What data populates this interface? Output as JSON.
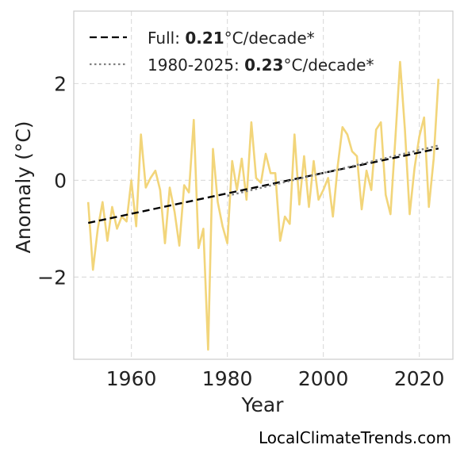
{
  "chart_data": {
    "type": "line",
    "xlabel": "Year",
    "ylabel": "Anomaly (°C)",
    "xlim": [
      1948,
      2027
    ],
    "ylim": [
      -3.7,
      3.5
    ],
    "xticks": [
      1960,
      1980,
      2000,
      2020
    ],
    "yticks": [
      {
        "value": -2,
        "label": "−2"
      },
      {
        "value": 0,
        "label": "0"
      },
      {
        "value": 2,
        "label": "2"
      }
    ],
    "grid": true,
    "legend_position": "top-left",
    "series": [
      {
        "role": "annual-anomaly",
        "color": "#f2d57a",
        "x": [
          1951,
          1952,
          1953,
          1954,
          1955,
          1956,
          1957,
          1958,
          1959,
          1960,
          1961,
          1962,
          1963,
          1964,
          1965,
          1966,
          1967,
          1968,
          1969,
          1970,
          1971,
          1972,
          1973,
          1974,
          1975,
          1976,
          1977,
          1978,
          1979,
          1980,
          1981,
          1982,
          1983,
          1984,
          1985,
          1986,
          1987,
          1988,
          1989,
          1990,
          1991,
          1992,
          1993,
          1994,
          1995,
          1996,
          1997,
          1998,
          1999,
          2000,
          2001,
          2002,
          2003,
          2004,
          2005,
          2006,
          2007,
          2008,
          2009,
          2010,
          2011,
          2012,
          2013,
          2014,
          2015,
          2016,
          2017,
          2018,
          2019,
          2020,
          2021,
          2022,
          2023,
          2024
        ],
        "y": [
          -0.45,
          -1.85,
          -1.0,
          -0.45,
          -1.25,
          -0.55,
          -1.0,
          -0.75,
          -0.85,
          0.0,
          -0.95,
          0.95,
          -0.15,
          0.05,
          0.2,
          -0.2,
          -1.3,
          -0.15,
          -0.65,
          -1.35,
          -0.1,
          -0.25,
          1.25,
          -1.4,
          -1.0,
          -3.5,
          0.65,
          -0.45,
          -0.95,
          -1.3,
          0.4,
          -0.2,
          0.45,
          -0.4,
          1.2,
          0.05,
          -0.05,
          0.55,
          0.15,
          0.15,
          -1.25,
          -0.75,
          -0.9,
          0.95,
          -0.5,
          0.5,
          -0.55,
          0.4,
          -0.4,
          -0.2,
          0.05,
          -0.75,
          0.3,
          1.1,
          0.95,
          0.6,
          0.5,
          -0.6,
          0.2,
          -0.2,
          1.05,
          1.2,
          -0.3,
          -0.7,
          0.85,
          2.45,
          1.05,
          -0.7,
          0.25,
          0.9,
          1.3,
          -0.55,
          0.45,
          2.1
        ]
      },
      {
        "role": "trend-full",
        "name": "Full",
        "legend_value": "0.21",
        "legend_unit": "°C/decade*",
        "color": "#000000",
        "style": "dashed",
        "x": [
          1951,
          2024
        ],
        "y": [
          -0.88,
          0.66
        ]
      },
      {
        "role": "trend-1980-2025",
        "name": "1980-2025",
        "legend_value": "0.23",
        "legend_unit": "°C/decade*",
        "color": "#808080",
        "style": "dotted",
        "x": [
          1980,
          2024
        ],
        "y": [
          -0.32,
          0.72
        ]
      }
    ]
  },
  "footer": {
    "credit": "LocalClimateTrends.com"
  }
}
